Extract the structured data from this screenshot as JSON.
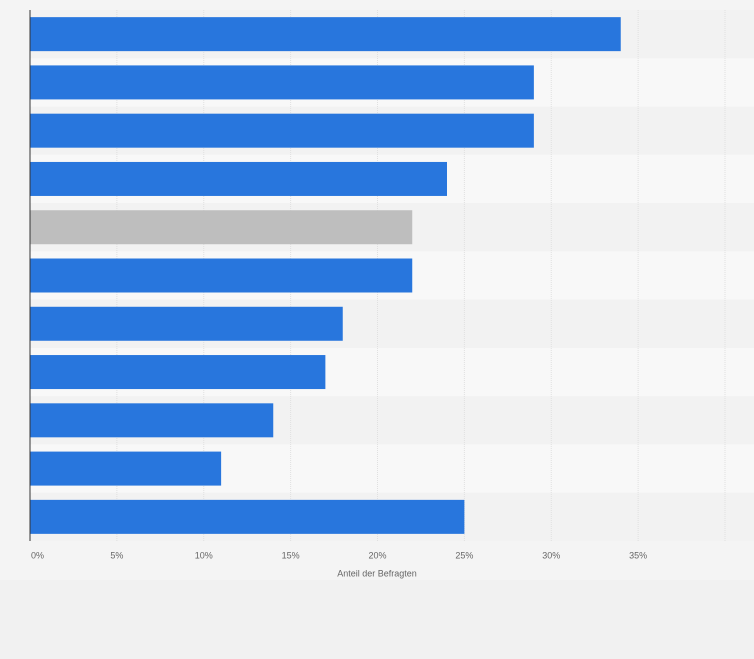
{
  "chart_data": {
    "type": "bar",
    "orientation": "horizontal",
    "x_label": "Anteil der Befragten",
    "categories": [
      null,
      null,
      null,
      null,
      null,
      null,
      null,
      null,
      null,
      null,
      null
    ],
    "values": [
      34,
      29,
      29,
      24,
      22,
      22,
      18,
      17,
      14,
      11,
      25
    ],
    "colors": [
      "#2876dd",
      "#2876dd",
      "#2876dd",
      "#2876dd",
      "#bebebe",
      "#2876dd",
      "#2876dd",
      "#2876dd",
      "#2876dd",
      "#2876dd",
      "#2876dd"
    ],
    "xlim": [
      0,
      40
    ],
    "xticks": [
      {
        "value": 0,
        "label": "0%"
      },
      {
        "value": 5,
        "label": "5%"
      },
      {
        "value": 10,
        "label": "10%"
      },
      {
        "value": 15,
        "label": "15%"
      },
      {
        "value": 20,
        "label": "20%"
      },
      {
        "value": 25,
        "label": "25%"
      },
      {
        "value": 30,
        "label": "30%"
      },
      {
        "value": 35,
        "label": "35%"
      }
    ],
    "grid": true
  }
}
